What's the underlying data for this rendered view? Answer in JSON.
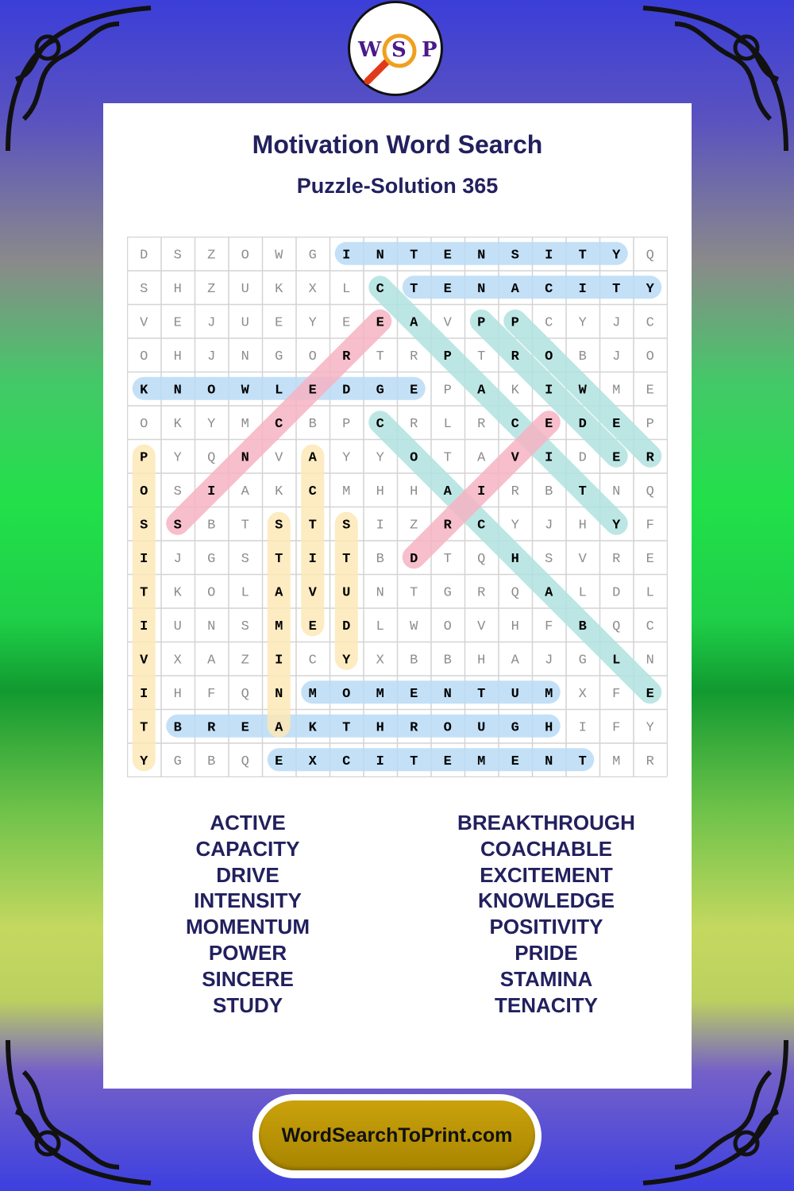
{
  "logo": {
    "letters": [
      "W",
      "S",
      "P"
    ]
  },
  "title": "Motivation Word Search",
  "subtitle": "Puzzle-Solution 365",
  "grid": [
    "DSZOWGINTENSITYQ",
    "SHZUKXLCTENACITY",
    "VEJUEYEEAVPPCYJC",
    "OHJNGORTRPTROBJO",
    "KNOWLEDGEPAKIWME",
    "OKYMCBPCRLRCEDEP",
    "PYQNVAYYOTAVIDER",
    "OSIAKCMHHAIRBTNQ",
    "SSBTSTSIZRCYJHYF",
    "IJGSTITBDTQHSVRE",
    "TKOLAVUNTGRQALDL",
    "IUNSMEDLWOVHFBQC",
    "VXAZICYXBBHAJGLN",
    "IHFQNMOMENTUMXFE",
    "TBREAKTHROUGHIFY",
    "YGBQEXCITEMENTMR"
  ],
  "colors": {
    "blue": "#b8dbf6",
    "teal": "#b0e2df",
    "pink": "#f6b3c3",
    "yellow": "#fde8b6"
  },
  "solutions": [
    {
      "word": "INTENSITY",
      "from": [
        0,
        6
      ],
      "to": [
        0,
        14
      ],
      "color": "blue"
    },
    {
      "word": "TENACITY",
      "from": [
        1,
        8
      ],
      "to": [
        1,
        15
      ],
      "color": "blue"
    },
    {
      "word": "KNOWLEDGE",
      "from": [
        4,
        0
      ],
      "to": [
        4,
        8
      ],
      "color": "blue"
    },
    {
      "word": "MOMENTUM",
      "from": [
        13,
        5
      ],
      "to": [
        13,
        12
      ],
      "color": "blue"
    },
    {
      "word": "BREAKTHROUGH",
      "from": [
        14,
        1
      ],
      "to": [
        14,
        12
      ],
      "color": "blue"
    },
    {
      "word": "EXCITEMENT",
      "from": [
        15,
        4
      ],
      "to": [
        15,
        13
      ],
      "color": "blue"
    },
    {
      "word": "CAPACITY",
      "from": [
        1,
        7
      ],
      "to": [
        8,
        14
      ],
      "color": "teal"
    },
    {
      "word": "COACHABLE",
      "from": [
        5,
        7
      ],
      "to": [
        13,
        15
      ],
      "color": "teal"
    },
    {
      "word": "PRIDE",
      "from": [
        2,
        10
      ],
      "to": [
        6,
        14
      ],
      "color": "teal"
    },
    {
      "word": "POWER",
      "from": [
        2,
        11
      ],
      "to": [
        6,
        15
      ],
      "color": "teal"
    },
    {
      "word": "SINCERE",
      "from": [
        8,
        1
      ],
      "to": [
        2,
        7
      ],
      "color": "pink"
    },
    {
      "word": "DRIVE",
      "from": [
        9,
        8
      ],
      "to": [
        5,
        12
      ],
      "color": "pink"
    },
    {
      "word": "POSITIVITY",
      "from": [
        6,
        0
      ],
      "to": [
        15,
        0
      ],
      "color": "yellow"
    },
    {
      "word": "ACTIVE",
      "from": [
        6,
        5
      ],
      "to": [
        11,
        5
      ],
      "color": "yellow"
    },
    {
      "word": "STAMINA",
      "from": [
        8,
        4
      ],
      "to": [
        14,
        4
      ],
      "color": "yellow"
    },
    {
      "word": "STUDY",
      "from": [
        8,
        6
      ],
      "to": [
        12,
        6
      ],
      "color": "yellow"
    }
  ],
  "word_list_left": [
    "ACTIVE",
    "CAPACITY",
    "DRIVE",
    "INTENSITY",
    "MOMENTUM",
    "POWER",
    "SINCERE",
    "STUDY"
  ],
  "word_list_right": [
    "BREAKTHROUGH",
    "COACHABLE",
    "EXCITEMENT",
    "KNOWLEDGE",
    "POSITIVITY",
    "PRIDE",
    "STAMINA",
    "TENACITY"
  ],
  "site_button": "WordSearchToPrint.com"
}
